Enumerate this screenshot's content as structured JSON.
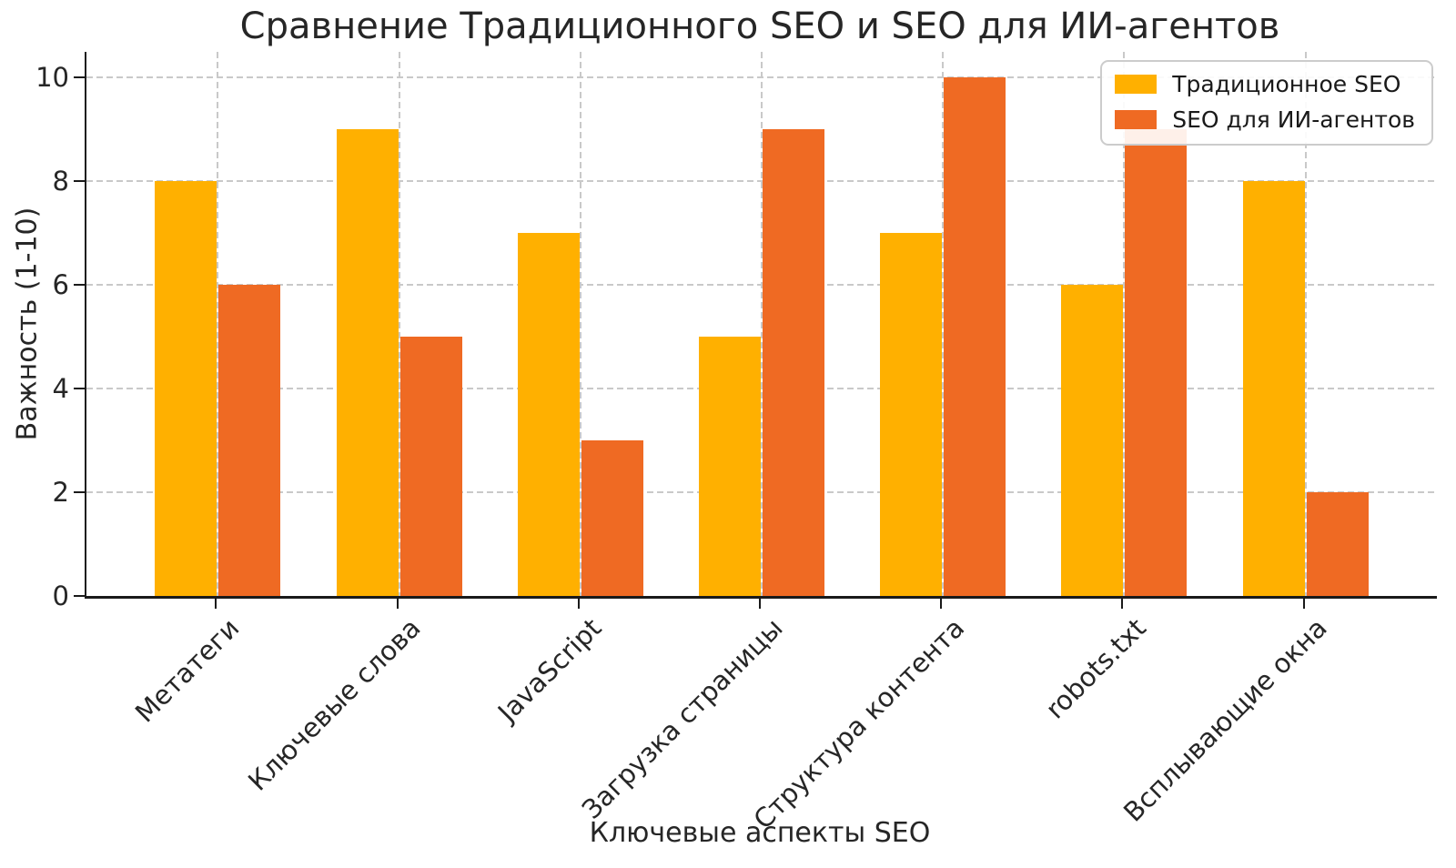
{
  "title": "Сравнение Традиционного SEO и SEO для ИИ-агентов",
  "chart_data": {
    "type": "bar",
    "title": "Сравнение Традиционного SEO и SEO для ИИ-агентов",
    "xlabel": "Ключевые аспекты SEO",
    "ylabel": "Важность (1-10)",
    "categories": [
      "Метатеги",
      "Ключевые слова",
      "JavaScript",
      "Загрузка страницы",
      "Структура контента",
      "robots.txt",
      "Всплывающие окна"
    ],
    "series": [
      {
        "name": "Традиционное SEO",
        "color": "#FFB000",
        "values": [
          8,
          9,
          7,
          5,
          7,
          6,
          8
        ]
      },
      {
        "name": "SEO для ИИ-агентов",
        "color": "#EF6A23",
        "values": [
          6,
          5,
          3,
          9,
          10,
          9,
          2
        ]
      }
    ],
    "ylim": [
      0,
      10.5
    ],
    "yticks": [
      0,
      2,
      4,
      6,
      8,
      10
    ],
    "grid": "both-dashed",
    "legend_position": "upper right"
  },
  "colors": {
    "grid": "#c9c9c9",
    "spine": "#1a1a1a",
    "text": "#262626",
    "legend_border": "#cccccc"
  }
}
